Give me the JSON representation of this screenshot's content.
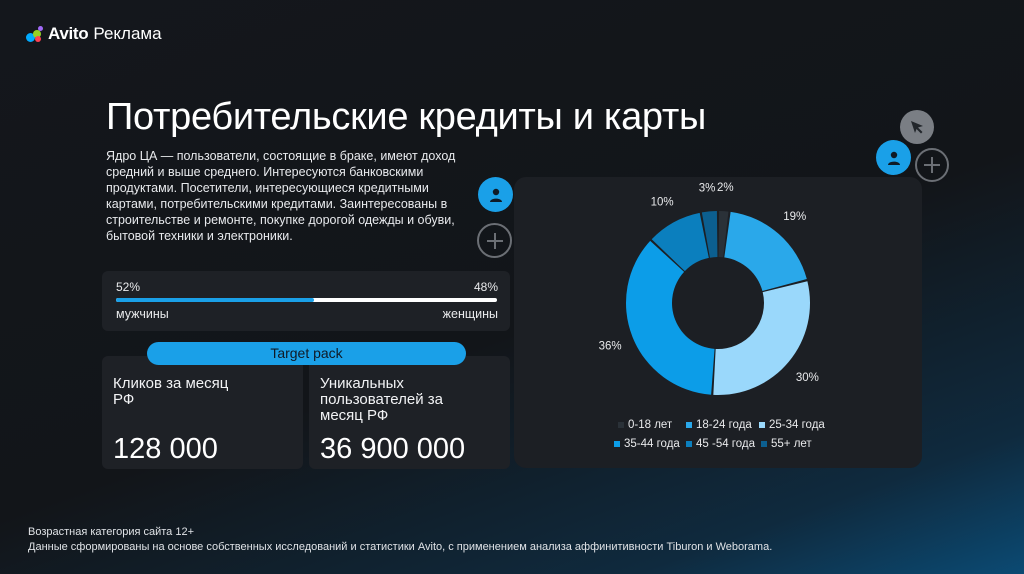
{
  "brand": {
    "name": "Avito",
    "product": "Реклама",
    "dot_colors": [
      "#00aaff",
      "#97cf26",
      "#ff4053",
      "#a169f7"
    ]
  },
  "header": {
    "title": "Потребительские кредиты и карты"
  },
  "description": "Ядро ЦА — пользователи, состоящие в браке, имеют доход средний и выше среднего. Интересуются банковскими продуктами. Посетители, интересующиеся кредитными картами, потребительскими кредитами. Заинтересованы в строительстве и ремонте, покупке дорогой одежды и обуви, бытовой техники и электроники.",
  "gender": {
    "male_pct": "52%",
    "female_pct": "48%",
    "male_label": "мужчины",
    "female_label": "женщины",
    "male_share": 0.52
  },
  "target_pack": "Target pack",
  "stats": [
    {
      "label": "Кликов за месяц РФ",
      "value": "128 000"
    },
    {
      "label": "Уникальных пользователей за месяц РФ",
      "value": "36 900 000"
    }
  ],
  "chart_data": {
    "type": "pie",
    "donut": true,
    "categories": [
      "0-18 лет",
      "18-24 года",
      "25-34 года",
      "35-44 года",
      "45 -54 года",
      "55+ лет"
    ],
    "values": [
      2,
      19,
      30,
      36,
      10,
      3
    ],
    "labels": [
      "2%",
      "19%",
      "30%",
      "36%",
      "10%",
      "3%"
    ],
    "colors": [
      "#2a3138",
      "#2aa8ea",
      "#9ad8fb",
      "#0c9de8",
      "#0b7fbe",
      "#0c5f90"
    ],
    "legend_position": "bottom"
  },
  "footer": {
    "line1": "Возрастная категория сайта 12+",
    "line2": "Данные сформированы на основе собственных исследований и статистики Avito, с применением анализа аффинитивности Tiburon и Weborama."
  },
  "icons": {
    "user": "user-icon",
    "plus": "plus-icon",
    "cursor": "cursor-icon"
  }
}
